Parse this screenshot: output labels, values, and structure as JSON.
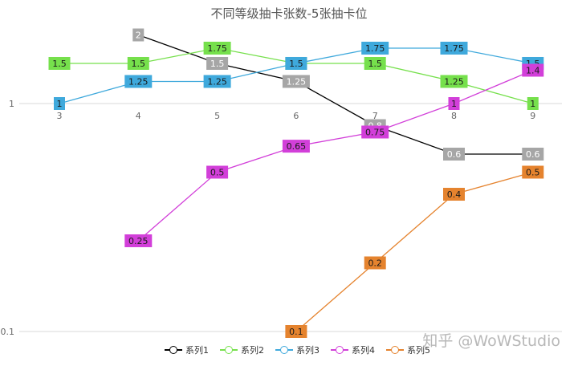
{
  "chart_data": {
    "type": "line",
    "title": "不同等级抽卡张数-5张抽卡位",
    "x": [
      3,
      4,
      5,
      6,
      7,
      8,
      9
    ],
    "x_tick_labels": [
      "3",
      "4",
      "5",
      "6",
      "7",
      "8",
      "9"
    ],
    "y_scale": "log",
    "ylim": [
      0.1,
      2
    ],
    "y_tick_labels": [
      "1",
      "0.1"
    ],
    "y_ticks": [
      1,
      0.1
    ],
    "grid": "horizontal",
    "legend_position": "bottom",
    "series": [
      {
        "name": "系列1",
        "color": "#000000",
        "label_bg": "#a6a6a6",
        "values": [
          null,
          2,
          1.5,
          1.25,
          0.8,
          0.6,
          0.6
        ],
        "labels": [
          null,
          "2",
          "1.5",
          "1.25",
          "0.8",
          "0.6",
          "0.6"
        ]
      },
      {
        "name": "系列2",
        "color": "#76e04c",
        "label_bg": "#76e04c",
        "values": [
          1.5,
          1.5,
          1.75,
          1.5,
          1.5,
          1.25,
          1
        ],
        "labels": [
          "1.5",
          "1.5",
          "1.75",
          "1.5",
          "1.5",
          "1.25",
          "1"
        ]
      },
      {
        "name": "系列3",
        "color": "#3fa9dc",
        "label_bg": "#3fa9dc",
        "values": [
          1,
          1.25,
          1.25,
          1.5,
          1.75,
          1.75,
          1.5
        ],
        "labels": [
          "1",
          "1.25",
          "1.25",
          "1.5",
          "1.75",
          "1.75",
          "1.5"
        ]
      },
      {
        "name": "系列4",
        "color": "#d23fd9",
        "label_bg": "#d23fd9",
        "values": [
          null,
          0.25,
          0.5,
          0.65,
          0.75,
          1,
          1.4
        ],
        "labels": [
          null,
          "0.25",
          "0.5",
          "0.65",
          "0.75",
          "1",
          "1.4"
        ]
      },
      {
        "name": "系列5",
        "color": "#e5832e",
        "label_bg": "#e5832e",
        "values": [
          null,
          null,
          null,
          0.1,
          0.2,
          0.4,
          0.5
        ],
        "labels": [
          null,
          null,
          null,
          "0.1",
          "0.2",
          "0.4",
          "0.5"
        ]
      }
    ]
  },
  "watermark": "知乎 @WoWStudio"
}
